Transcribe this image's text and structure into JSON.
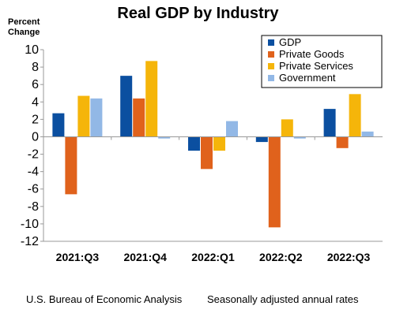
{
  "chart_data": {
    "type": "bar",
    "title": "Real GDP by Industry",
    "ylabel": "Percent Change",
    "ylabel_lines": [
      "Percent",
      "Change"
    ],
    "categories": [
      "2021:Q3",
      "2021:Q4",
      "2022:Q1",
      "2022:Q2",
      "2022:Q3"
    ],
    "series": [
      {
        "name": "GDP",
        "color": "#0b4fa0",
        "values": [
          2.7,
          7.0,
          -1.6,
          -0.6,
          3.2
        ]
      },
      {
        "name": "Private Goods",
        "color": "#e0621c",
        "values": [
          -6.6,
          4.4,
          -3.7,
          -10.4,
          -1.3
        ]
      },
      {
        "name": "Private Services",
        "color": "#f5b50a",
        "values": [
          4.7,
          8.7,
          -1.6,
          2.0,
          4.9
        ]
      },
      {
        "name": "Government",
        "color": "#92b8e6",
        "values": [
          4.4,
          -0.2,
          1.8,
          -0.2,
          0.6
        ]
      }
    ],
    "ylim": [
      -12,
      10
    ],
    "yticks": [
      10,
      8,
      6,
      4,
      2,
      0,
      -2,
      -4,
      -6,
      -8,
      -10,
      -12
    ],
    "grid": false,
    "legend_position": "top-right"
  },
  "footer": {
    "source": "U.S. Bureau of Economic Analysis",
    "note": "Seasonally adjusted annual rates"
  }
}
